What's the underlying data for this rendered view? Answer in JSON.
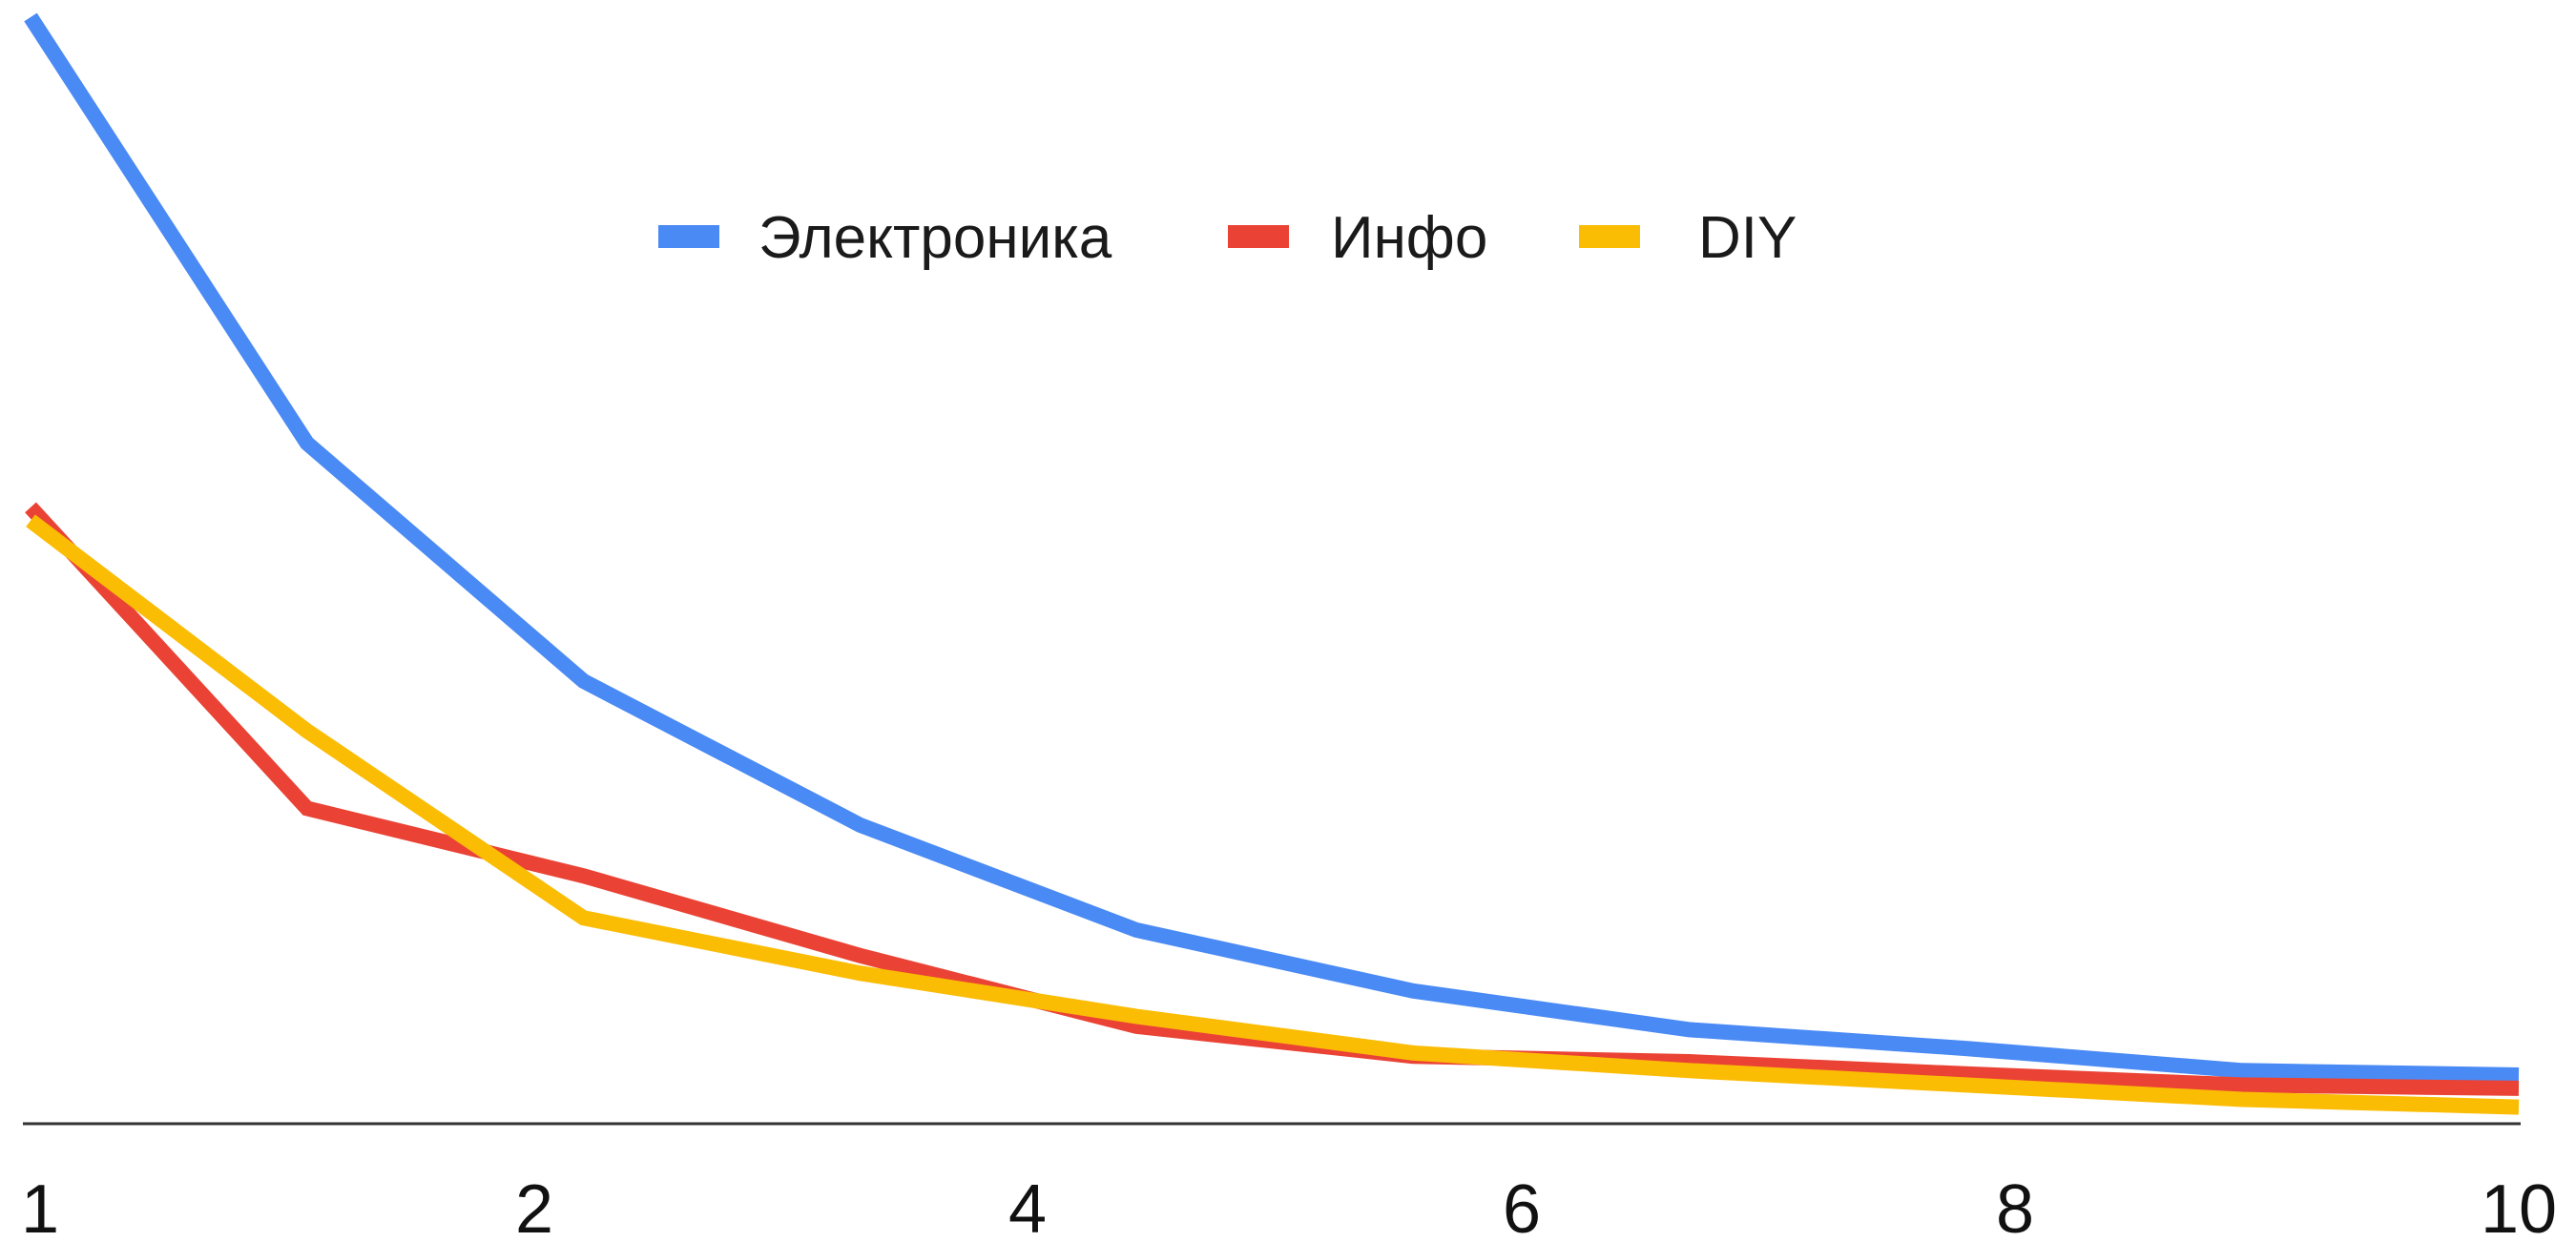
{
  "chart_data": {
    "type": "line",
    "title": "",
    "xlabel": "",
    "ylabel": "",
    "x_tick_labels": [
      "1",
      "2",
      "4",
      "6",
      "8",
      "10"
    ],
    "x": [
      1,
      2,
      3,
      4,
      5,
      6,
      7,
      8,
      9,
      10
    ],
    "ylim": [
      0,
      1
    ],
    "grid": false,
    "legend_position": "top-center",
    "series": [
      {
        "name": "Электроника",
        "color": "#4a8af4",
        "values": [
          1.0,
          0.615,
          0.4,
          0.27,
          0.175,
          0.12,
          0.085,
          0.068,
          0.048,
          0.044
        ]
      },
      {
        "name": "Инфо",
        "color": "#ea4335",
        "values": [
          0.557,
          0.285,
          0.224,
          0.152,
          0.088,
          0.061,
          0.056,
          0.045,
          0.035,
          0.032
        ]
      },
      {
        "name": "DIY",
        "color": "#fbbc04",
        "values": [
          0.545,
          0.355,
          0.186,
          0.136,
          0.097,
          0.064,
          0.048,
          0.035,
          0.022,
          0.015
        ]
      }
    ]
  }
}
